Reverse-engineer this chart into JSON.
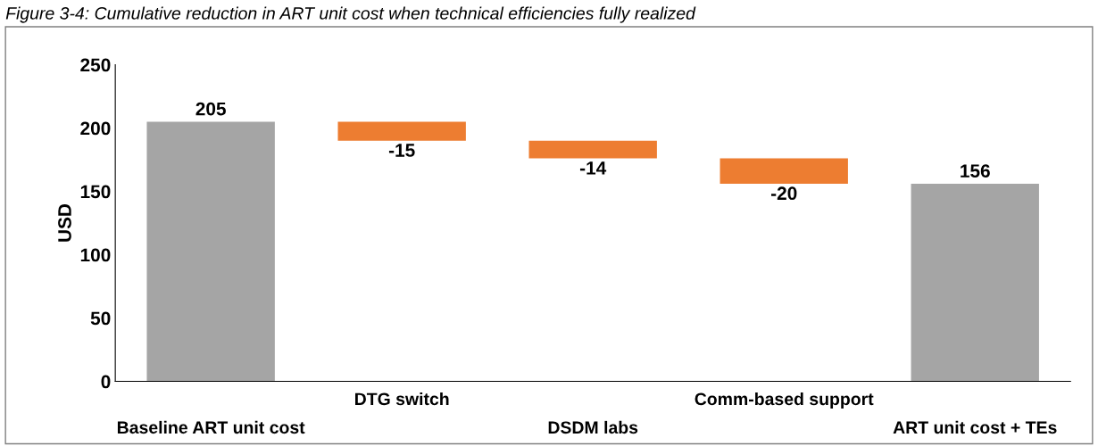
{
  "chart_data": {
    "type": "bar",
    "title": "Figure 3-4: Cumulative reduction in ART unit cost when technical efficiencies fully realized",
    "ylabel": "USD",
    "categories": [
      "Baseline ART unit cost",
      "DTG switch",
      "DSDM labs",
      "Comm-based support",
      "ART unit cost + TEs"
    ],
    "values": [
      205,
      -15,
      -14,
      -20,
      156
    ],
    "base": [
      0,
      205,
      190,
      176,
      0
    ],
    "colors": [
      "#a5a5a5",
      "#ed7d31",
      "#ed7d31",
      "#ed7d31",
      "#a5a5a5"
    ],
    "ylim": [
      0,
      250
    ],
    "yticks": [
      0,
      50,
      100,
      150,
      200,
      250
    ],
    "grid": false,
    "data_labels": true
  }
}
